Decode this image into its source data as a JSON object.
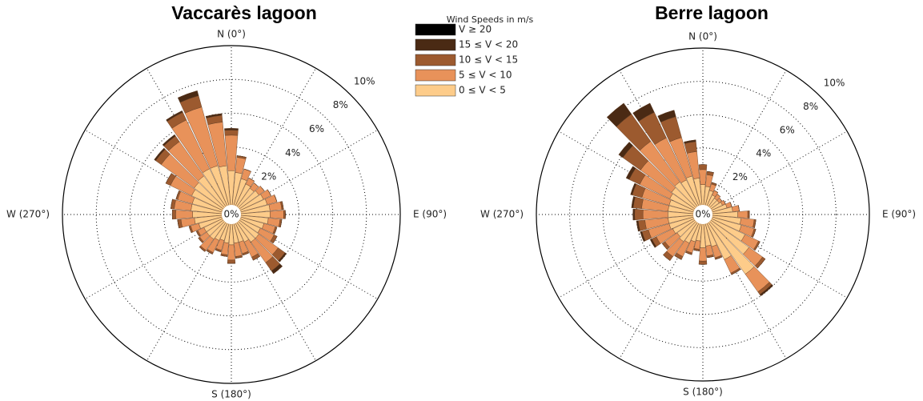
{
  "chart_data": [
    {
      "type": "windrose",
      "title": "Vaccarès lagoon",
      "legend_title": "Wind Speeds in m/s",
      "directions": [
        0,
        10,
        20,
        30,
        40,
        50,
        60,
        70,
        80,
        90,
        100,
        110,
        120,
        130,
        140,
        150,
        160,
        170,
        180,
        190,
        200,
        210,
        220,
        230,
        240,
        250,
        260,
        270,
        280,
        290,
        300,
        310,
        320,
        330,
        340,
        350
      ],
      "angle_ticks": [
        {
          "value": 0,
          "label": "N (0°)"
        },
        {
          "value": 90,
          "label": "E (90°)"
        },
        {
          "value": 180,
          "label": "S (180°)"
        },
        {
          "value": 270,
          "label": "W (270°)"
        }
      ],
      "rlim": [
        0,
        10
      ],
      "rticks": [
        {
          "value": 0,
          "label": "0%"
        },
        {
          "value": 2,
          "label": "2%"
        },
        {
          "value": 4,
          "label": "4%"
        },
        {
          "value": 6,
          "label": "6%"
        },
        {
          "value": 8,
          "label": "8%"
        },
        {
          "value": 10,
          "label": "10%"
        }
      ],
      "series": [
        {
          "name": "V ≥ 20",
          "color": "#000000",
          "values": [
            0,
            0,
            0,
            0,
            0,
            0,
            0,
            0,
            0,
            0,
            0,
            0,
            0,
            0,
            0,
            0,
            0,
            0,
            0,
            0,
            0,
            0,
            0,
            0,
            0,
            0,
            0,
            0,
            0,
            0,
            0,
            0,
            0,
            0,
            0,
            0
          ]
        },
        {
          "name": "15 ≤ V < 20",
          "color": "#4a2a14",
          "values": [
            0.1,
            0,
            0,
            0,
            0,
            0,
            0,
            0,
            0,
            0,
            0,
            0,
            0,
            0.1,
            0.2,
            0,
            0,
            0,
            0,
            0,
            0,
            0,
            0,
            0,
            0,
            0,
            0,
            0,
            0,
            0,
            0,
            0.1,
            0.1,
            0.1,
            0.3,
            0.1
          ]
        },
        {
          "name": "10 ≤ V < 15",
          "color": "#9c5a2f",
          "values": [
            0.3,
            0.1,
            0,
            0,
            0,
            0,
            0,
            0,
            0.1,
            0.1,
            0.1,
            0.1,
            0.2,
            0.5,
            0.6,
            0.2,
            0.1,
            0.1,
            0.2,
            0.1,
            0.1,
            0.1,
            0.1,
            0.1,
            0.1,
            0.1,
            0.2,
            0.2,
            0.2,
            0.1,
            0.3,
            0.4,
            0.4,
            0.5,
            0.7,
            0.4
          ]
        },
        {
          "name": "5 ≤ V < 10",
          "color": "#e8925a",
          "values": [
            2.1,
            0.9,
            0.6,
            0.4,
            0.4,
            0.4,
            0.5,
            0.6,
            0.7,
            0.8,
            0.7,
            0.7,
            0.9,
            1.4,
            1.5,
            1.0,
            0.7,
            0.8,
            0.9,
            0.7,
            0.6,
            0.8,
            0.8,
            0.5,
            0.4,
            0.5,
            0.8,
            1.0,
            1.0,
            0.9,
            1.4,
            2.4,
            2.5,
            3.2,
            3.6,
            2.6
          ]
        },
        {
          "name": "0 ≤ V < 5",
          "color": "#fdcc8a",
          "values": [
            2.6,
            2.5,
            2.2,
            2.0,
            1.9,
            2.0,
            2.1,
            2.2,
            2.3,
            2.3,
            2.2,
            2.0,
            1.9,
            2.0,
            2.0,
            1.8,
            1.7,
            1.7,
            1.8,
            1.7,
            1.6,
            1.7,
            1.8,
            1.8,
            1.8,
            2.0,
            2.2,
            2.3,
            2.4,
            2.4,
            2.6,
            2.7,
            2.8,
            3.0,
            3.0,
            2.9
          ]
        }
      ]
    },
    {
      "type": "windrose",
      "title": "Berre lagoon",
      "directions": [
        0,
        10,
        20,
        30,
        40,
        50,
        60,
        70,
        80,
        90,
        100,
        110,
        120,
        130,
        140,
        150,
        160,
        170,
        180,
        190,
        200,
        210,
        220,
        230,
        240,
        250,
        260,
        270,
        280,
        290,
        300,
        310,
        320,
        330,
        340,
        350
      ],
      "angle_ticks": [
        {
          "value": 0,
          "label": "N (0°)"
        },
        {
          "value": 90,
          "label": "E (90°)"
        },
        {
          "value": 180,
          "label": "S (180°)"
        },
        {
          "value": 270,
          "label": "W (270°)"
        }
      ],
      "rlim": [
        0,
        10
      ],
      "rticks": [
        {
          "value": 0,
          "label": "0%"
        },
        {
          "value": 2,
          "label": "2%"
        },
        {
          "value": 4,
          "label": "4%"
        },
        {
          "value": 6,
          "label": "6%"
        },
        {
          "value": 8,
          "label": "8%"
        },
        {
          "value": 10,
          "label": "10%"
        }
      ],
      "series": [
        {
          "color": "#000000",
          "values": [
            0,
            0,
            0,
            0,
            0,
            0,
            0,
            0,
            0,
            0,
            0,
            0,
            0,
            0,
            0,
            0,
            0,
            0,
            0,
            0,
            0,
            0,
            0,
            0,
            0,
            0,
            0,
            0,
            0,
            0,
            0,
            0,
            0,
            0,
            0,
            0
          ]
        },
        {
          "color": "#4a2a14",
          "values": [
            0,
            0,
            0,
            0,
            0,
            0,
            0,
            0,
            0,
            0,
            0,
            0,
            0,
            0,
            0.1,
            0,
            0,
            0,
            0,
            0,
            0,
            0,
            0,
            0,
            0.1,
            0.1,
            0.1,
            0.1,
            0.1,
            0.1,
            0.2,
            0.3,
            0.8,
            0.6,
            0.4,
            0.1
          ]
        },
        {
          "color": "#9c5a2f",
          "values": [
            0.3,
            0.2,
            0.1,
            0,
            0,
            0,
            0,
            0,
            0,
            0.1,
            0.1,
            0.1,
            0.1,
            0.2,
            0.2,
            0.1,
            0.1,
            0.1,
            0.2,
            0.1,
            0.1,
            0.2,
            0.3,
            0.2,
            0.3,
            0.4,
            0.4,
            0.5,
            0.5,
            0.6,
            0.7,
            1.3,
            2.0,
            1.7,
            1.3,
            0.6
          ]
        },
        {
          "color": "#e8925a",
          "values": [
            0.9,
            0.7,
            0.4,
            0.3,
            0.3,
            0.2,
            0.2,
            0.3,
            0.4,
            0.6,
            0.8,
            0.8,
            0.9,
            1.0,
            1.3,
            0.9,
            0.7,
            0.6,
            0.8,
            0.5,
            0.7,
            0.9,
            1.1,
            0.9,
            1.1,
            1.3,
            1.4,
            1.5,
            1.6,
            1.7,
            2.0,
            2.3,
            3.0,
            2.8,
            2.4,
            1.6
          ]
        },
        {
          "color": "#fdcc8a",
          "values": [
            1.8,
            1.7,
            1.5,
            1.3,
            1.2,
            1.2,
            1.3,
            1.5,
            1.8,
            2.1,
            2.3,
            2.4,
            2.8,
            3.4,
            4.4,
            3.0,
            2.0,
            1.9,
            2.0,
            1.6,
            1.7,
            1.9,
            2.0,
            1.9,
            2.0,
            2.1,
            2.1,
            2.1,
            2.1,
            2.1,
            2.2,
            2.3,
            2.4,
            2.3,
            2.4,
            2.2
          ]
        }
      ]
    }
  ]
}
